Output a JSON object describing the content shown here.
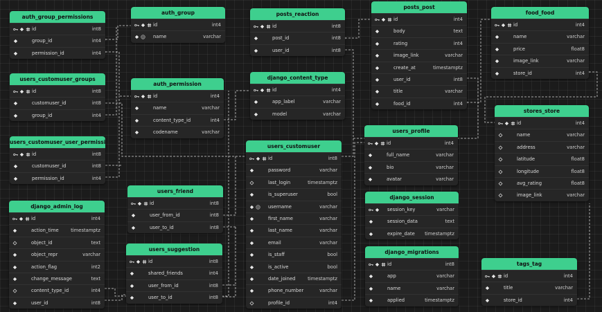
{
  "tables": [
    {
      "name": "auth_group_permissions",
      "columns": [
        {
          "name": "id",
          "type": "int8",
          "icons": [
            "key",
            "diamond",
            "hash"
          ]
        },
        {
          "name": "group_id",
          "type": "int4",
          "icons": [
            "diamond"
          ]
        },
        {
          "name": "permission_id",
          "type": "int4",
          "icons": [
            "diamond"
          ]
        }
      ]
    },
    {
      "name": "auth_group",
      "columns": [
        {
          "name": "id",
          "type": "int4",
          "icons": [
            "key",
            "diamond",
            "hash"
          ]
        },
        {
          "name": "name",
          "type": "varchar",
          "icons": [
            "diamond",
            "fingerprint"
          ]
        }
      ]
    },
    {
      "name": "posts_reaction",
      "columns": [
        {
          "name": "id",
          "type": "int8",
          "icons": [
            "key",
            "diamond",
            "hash"
          ]
        },
        {
          "name": "post_id",
          "type": "int8",
          "icons": [
            "diamond"
          ]
        },
        {
          "name": "user_id",
          "type": "int8",
          "icons": [
            "diamond"
          ]
        }
      ]
    },
    {
      "name": "posts_post",
      "columns": [
        {
          "name": "id",
          "type": "int4",
          "icons": [
            "key",
            "diamond",
            "hash"
          ]
        },
        {
          "name": "body",
          "type": "text",
          "icons": [
            "diamond"
          ]
        },
        {
          "name": "rating",
          "type": "int4",
          "icons": [
            "diamond"
          ]
        },
        {
          "name": "image_link",
          "type": "varchar",
          "icons": [
            "diamond"
          ]
        },
        {
          "name": "create_at",
          "type": "timestamptz",
          "icons": [
            "diamond"
          ]
        },
        {
          "name": "user_id",
          "type": "int8",
          "icons": [
            "diamond"
          ]
        },
        {
          "name": "title",
          "type": "varchar",
          "icons": [
            "diamond"
          ]
        },
        {
          "name": "food_id",
          "type": "int4",
          "icons": [
            "diamond"
          ]
        }
      ]
    },
    {
      "name": "food_food",
      "columns": [
        {
          "name": "id",
          "type": "int4",
          "icons": [
            "key",
            "diamond",
            "hash"
          ]
        },
        {
          "name": "name",
          "type": "varchar",
          "icons": [
            "diamond"
          ]
        },
        {
          "name": "price",
          "type": "float8",
          "icons": [
            "diamond"
          ]
        },
        {
          "name": "image_link",
          "type": "varchar",
          "icons": [
            "diamond"
          ]
        },
        {
          "name": "store_id",
          "type": "int4",
          "icons": [
            "diamond"
          ]
        }
      ]
    },
    {
      "name": "users_customuser_groups",
      "columns": [
        {
          "name": "id",
          "type": "int8",
          "icons": [
            "key",
            "diamond",
            "hash"
          ]
        },
        {
          "name": "customuser_id",
          "type": "int8",
          "icons": [
            "diamond"
          ]
        },
        {
          "name": "group_id",
          "type": "int4",
          "icons": [
            "diamond"
          ]
        }
      ]
    },
    {
      "name": "auth_permission",
      "columns": [
        {
          "name": "id",
          "type": "int4",
          "icons": [
            "key",
            "diamond",
            "hash"
          ]
        },
        {
          "name": "name",
          "type": "varchar",
          "icons": [
            "diamond"
          ]
        },
        {
          "name": "content_type_id",
          "type": "int4",
          "icons": [
            "diamond"
          ]
        },
        {
          "name": "codename",
          "type": "varchar",
          "icons": [
            "diamond"
          ]
        }
      ]
    },
    {
      "name": "django_content_type",
      "columns": [
        {
          "name": "id",
          "type": "int4",
          "icons": [
            "key",
            "diamond",
            "hash"
          ]
        },
        {
          "name": "app_label",
          "type": "varchar",
          "icons": [
            "diamond"
          ]
        },
        {
          "name": "model",
          "type": "varchar",
          "icons": [
            "diamond"
          ]
        }
      ]
    },
    {
      "name": "stores_store",
      "columns": [
        {
          "name": "id",
          "type": "int4",
          "icons": [
            "key",
            "diamond",
            "hash"
          ]
        },
        {
          "name": "name",
          "type": "varchar",
          "icons": [
            "diamond-outline"
          ]
        },
        {
          "name": "address",
          "type": "varchar",
          "icons": [
            "diamond-outline"
          ]
        },
        {
          "name": "latitude",
          "type": "float8",
          "icons": [
            "diamond-outline"
          ]
        },
        {
          "name": "longitude",
          "type": "float8",
          "icons": [
            "diamond-outline"
          ]
        },
        {
          "name": "avg_rating",
          "type": "float8",
          "icons": [
            "diamond-outline"
          ]
        },
        {
          "name": "image_link",
          "type": "varchar",
          "icons": [
            "diamond-outline"
          ]
        }
      ]
    },
    {
      "name": "users_profile",
      "columns": [
        {
          "name": "id",
          "type": "int4",
          "icons": [
            "key",
            "diamond",
            "hash"
          ]
        },
        {
          "name": "full_name",
          "type": "varchar",
          "icons": [
            "diamond"
          ]
        },
        {
          "name": "bio",
          "type": "varchar",
          "icons": [
            "diamond"
          ]
        },
        {
          "name": "avatar",
          "type": "varchar",
          "icons": [
            "diamond"
          ]
        }
      ]
    },
    {
      "name": "users_customuser_user_permissions",
      "columns": [
        {
          "name": "id",
          "type": "int8",
          "icons": [
            "key",
            "diamond",
            "hash"
          ]
        },
        {
          "name": "customuser_id",
          "type": "int8",
          "icons": [
            "diamond"
          ]
        },
        {
          "name": "permission_id",
          "type": "int4",
          "icons": [
            "diamond"
          ]
        }
      ]
    },
    {
      "name": "users_customuser",
      "columns": [
        {
          "name": "id",
          "type": "int8",
          "icons": [
            "key",
            "diamond",
            "hash"
          ]
        },
        {
          "name": "password",
          "type": "varchar",
          "icons": [
            "diamond"
          ]
        },
        {
          "name": "last_login",
          "type": "timestamptz",
          "icons": [
            "diamond-outline"
          ]
        },
        {
          "name": "is_superuser",
          "type": "bool",
          "icons": [
            "diamond"
          ]
        },
        {
          "name": "username",
          "type": "varchar",
          "icons": [
            "diamond",
            "fingerprint"
          ]
        },
        {
          "name": "first_name",
          "type": "varchar",
          "icons": [
            "diamond"
          ]
        },
        {
          "name": "last_name",
          "type": "varchar",
          "icons": [
            "diamond"
          ]
        },
        {
          "name": "email",
          "type": "varchar",
          "icons": [
            "diamond"
          ]
        },
        {
          "name": "is_staff",
          "type": "bool",
          "icons": [
            "diamond"
          ]
        },
        {
          "name": "is_active",
          "type": "bool",
          "icons": [
            "diamond"
          ]
        },
        {
          "name": "date_joined",
          "type": "timestamptz",
          "icons": [
            "diamond"
          ]
        },
        {
          "name": "phone_number",
          "type": "varchar",
          "icons": [
            "diamond"
          ]
        },
        {
          "name": "profile_id",
          "type": "int4",
          "icons": [
            "diamond-outline"
          ]
        }
      ]
    },
    {
      "name": "users_friend",
      "columns": [
        {
          "name": "id",
          "type": "int8",
          "icons": [
            "key",
            "diamond",
            "hash"
          ]
        },
        {
          "name": "user_from_id",
          "type": "int8",
          "icons": [
            "diamond"
          ]
        },
        {
          "name": "user_to_id",
          "type": "int8",
          "icons": [
            "diamond"
          ]
        }
      ]
    },
    {
      "name": "django_session",
      "columns": [
        {
          "name": "session_key",
          "type": "varchar",
          "icons": [
            "key",
            "diamond"
          ]
        },
        {
          "name": "session_data",
          "type": "text",
          "icons": [
            "diamond"
          ]
        },
        {
          "name": "expire_date",
          "type": "timestamptz",
          "icons": [
            "diamond"
          ]
        }
      ]
    },
    {
      "name": "django_admin_log",
      "columns": [
        {
          "name": "id",
          "type": "int4",
          "icons": [
            "key",
            "diamond",
            "hash"
          ]
        },
        {
          "name": "action_time",
          "type": "timestamptz",
          "icons": [
            "diamond"
          ]
        },
        {
          "name": "object_id",
          "type": "text",
          "icons": [
            "diamond-outline"
          ]
        },
        {
          "name": "object_repr",
          "type": "varchar",
          "icons": [
            "diamond"
          ]
        },
        {
          "name": "action_flag",
          "type": "int2",
          "icons": [
            "diamond"
          ]
        },
        {
          "name": "change_message",
          "type": "text",
          "icons": [
            "diamond"
          ]
        },
        {
          "name": "content_type_id",
          "type": "int4",
          "icons": [
            "diamond-outline"
          ]
        },
        {
          "name": "user_id",
          "type": "int8",
          "icons": [
            "diamond"
          ]
        }
      ]
    },
    {
      "name": "users_suggestion",
      "columns": [
        {
          "name": "id",
          "type": "int8",
          "icons": [
            "key",
            "diamond",
            "hash"
          ]
        },
        {
          "name": "shared_friends",
          "type": "int4",
          "icons": [
            "diamond"
          ]
        },
        {
          "name": "user_from_id",
          "type": "int8",
          "icons": [
            "diamond"
          ]
        },
        {
          "name": "user_to_id",
          "type": "int8",
          "icons": [
            "diamond"
          ]
        }
      ]
    },
    {
      "name": "django_migrations",
      "columns": [
        {
          "name": "id",
          "type": "int8",
          "icons": [
            "key",
            "diamond",
            "hash"
          ]
        },
        {
          "name": "app",
          "type": "varchar",
          "icons": [
            "diamond"
          ]
        },
        {
          "name": "name",
          "type": "varchar",
          "icons": [
            "diamond"
          ]
        },
        {
          "name": "applied",
          "type": "timestamptz",
          "icons": [
            "diamond"
          ]
        }
      ]
    },
    {
      "name": "tags_tag",
      "columns": [
        {
          "name": "id",
          "type": "int4",
          "icons": [
            "key",
            "diamond",
            "hash"
          ]
        },
        {
          "name": "title",
          "type": "varchar",
          "icons": [
            "diamond"
          ]
        },
        {
          "name": "store_id",
          "type": "int4",
          "icons": [
            "diamond"
          ]
        }
      ]
    }
  ]
}
